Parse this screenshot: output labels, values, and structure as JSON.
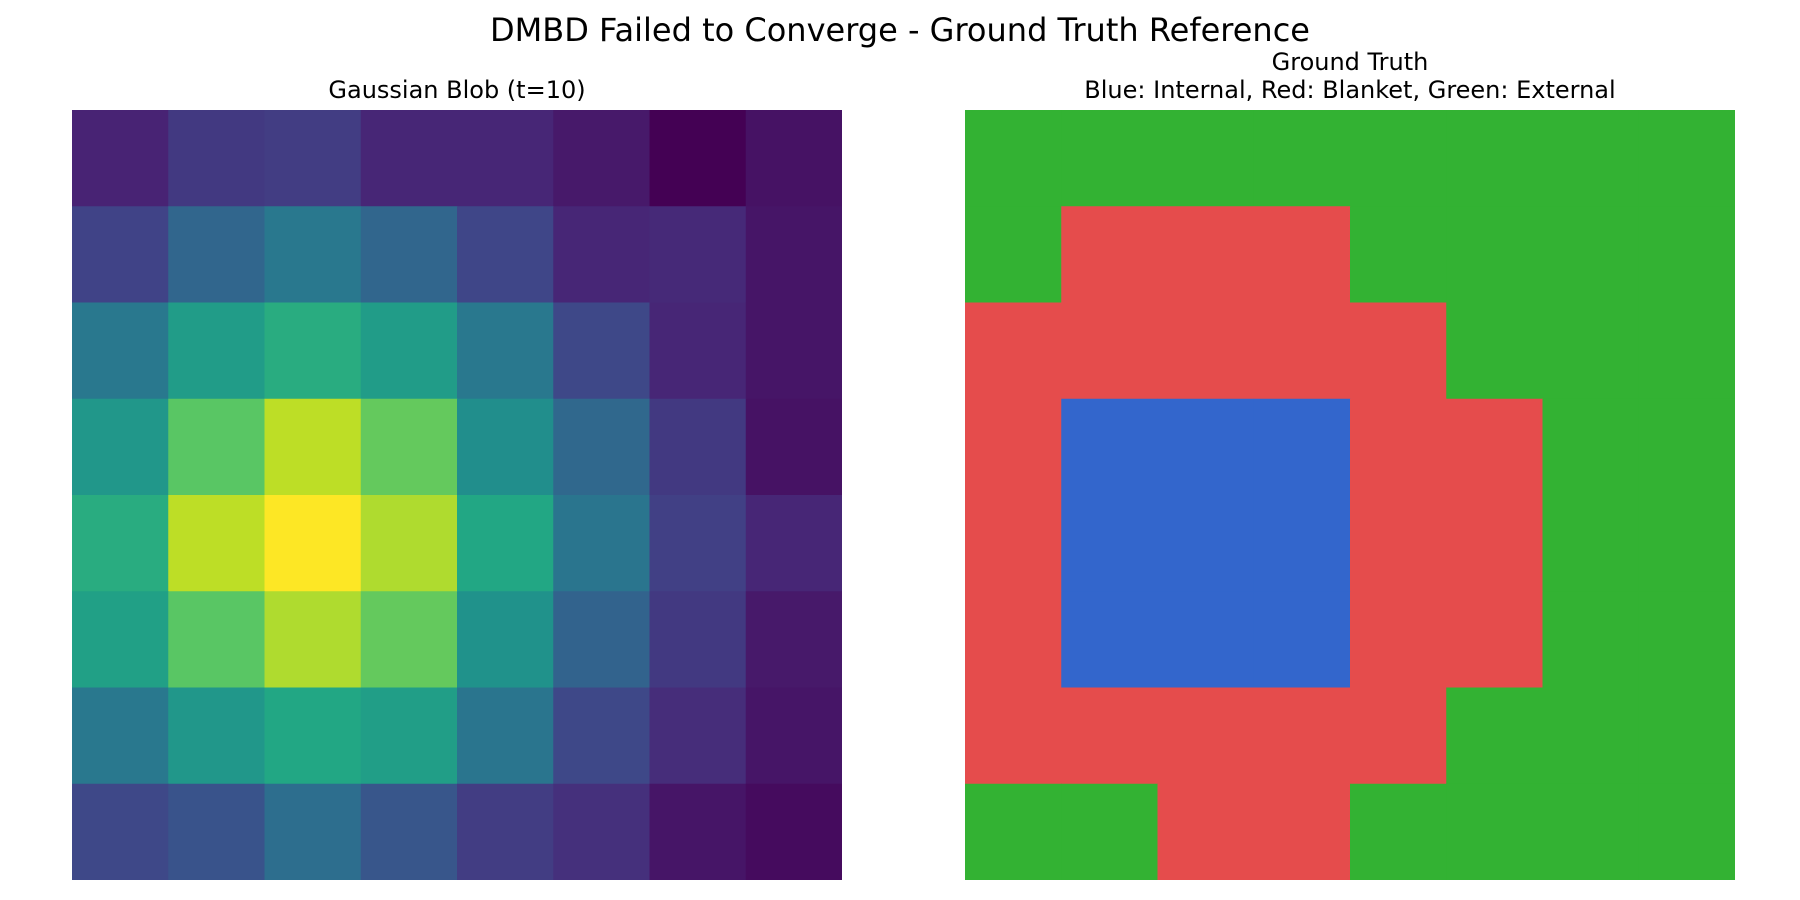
{
  "figure": {
    "suptitle": "DMBD Failed to Converge - Ground Truth Reference"
  },
  "chart_data": [
    {
      "type": "heatmap",
      "title": "Gaussian Blob (t=10)",
      "xlabel": "",
      "ylabel": "",
      "colormap": "viridis",
      "axes_visible": false,
      "grid": false,
      "vmin": 0.0,
      "vmax": 1.0,
      "rows": 8,
      "cols": 8,
      "values": [
        [
          0.1,
          0.17,
          0.18,
          0.11,
          0.11,
          0.07,
          0.0,
          0.05
        ],
        [
          0.2,
          0.33,
          0.4,
          0.33,
          0.21,
          0.11,
          0.12,
          0.06
        ],
        [
          0.4,
          0.55,
          0.62,
          0.55,
          0.4,
          0.22,
          0.11,
          0.06
        ],
        [
          0.53,
          0.74,
          0.9,
          0.76,
          0.49,
          0.34,
          0.17,
          0.05
        ],
        [
          0.62,
          0.9,
          1.0,
          0.88,
          0.6,
          0.39,
          0.19,
          0.11
        ],
        [
          0.57,
          0.74,
          0.88,
          0.76,
          0.51,
          0.32,
          0.17,
          0.07
        ],
        [
          0.4,
          0.53,
          0.6,
          0.56,
          0.39,
          0.22,
          0.13,
          0.06
        ],
        [
          0.22,
          0.26,
          0.36,
          0.27,
          0.18,
          0.14,
          0.06,
          0.03
        ]
      ]
    },
    {
      "type": "heatmap",
      "title": "Ground Truth\nBlue: Internal, Red: Blanket, Green: External",
      "xlabel": "",
      "ylabel": "",
      "axes_visible": false,
      "grid": false,
      "rows": 8,
      "cols": 8,
      "classes": [
        {
          "id": 0,
          "color": "#3366cc"
        },
        {
          "id": 1,
          "color": "#e54c4c"
        },
        {
          "id": 2,
          "color": "#33b233"
        }
      ],
      "values": [
        [
          2,
          2,
          2,
          2,
          2,
          2,
          2,
          2
        ],
        [
          2,
          1,
          1,
          1,
          2,
          2,
          2,
          2
        ],
        [
          1,
          1,
          1,
          1,
          1,
          2,
          2,
          2
        ],
        [
          1,
          0,
          0,
          0,
          1,
          1,
          2,
          2
        ],
        [
          1,
          0,
          0,
          0,
          1,
          1,
          2,
          2
        ],
        [
          1,
          0,
          0,
          0,
          1,
          1,
          2,
          2
        ],
        [
          1,
          1,
          1,
          1,
          1,
          2,
          2,
          2
        ],
        [
          2,
          2,
          1,
          1,
          2,
          2,
          2,
          2
        ]
      ]
    }
  ]
}
